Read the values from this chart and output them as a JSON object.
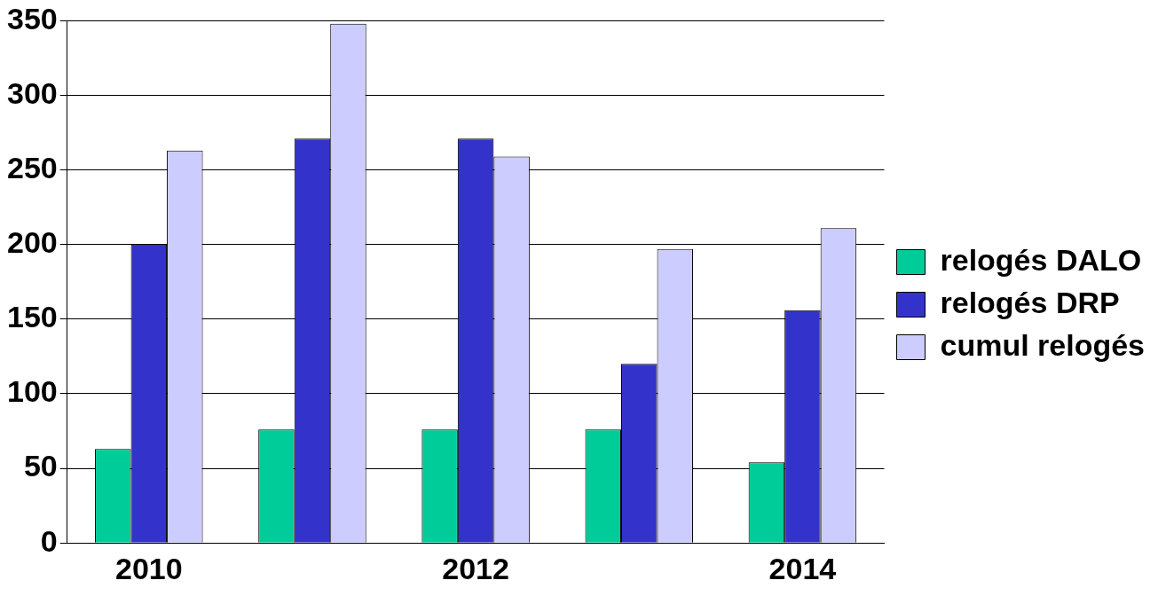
{
  "chart_data": {
    "type": "bar",
    "categories": [
      "2010",
      null,
      "2012",
      null,
      "2014"
    ],
    "series": [
      {
        "name": "relogés DALO",
        "color": "#00cc99",
        "values": [
          63,
          76,
          76,
          76,
          54
        ]
      },
      {
        "name": "relogés DRP",
        "color": "#3333cc",
        "values": [
          200,
          271,
          271,
          120,
          156
        ]
      },
      {
        "name": "cumul relogés",
        "color": "#ccccff",
        "values": [
          263,
          348,
          259,
          197,
          211
        ]
      }
    ],
    "ylim": [
      0,
      350
    ],
    "yticks": [
      0,
      50,
      100,
      150,
      200,
      250,
      300,
      350
    ],
    "grid": "y",
    "legend": "right"
  }
}
